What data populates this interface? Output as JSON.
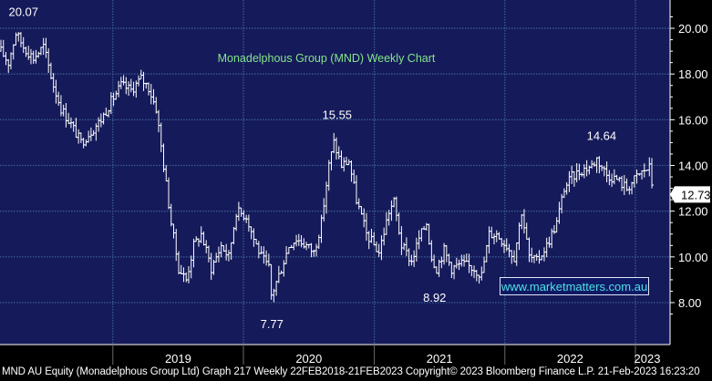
{
  "chart_data": {
    "type": "bar",
    "subtype": "ohlc-weekly",
    "title": "Monadelphous Group (MND) Weekly Chart",
    "xlabel": "",
    "ylabel": "",
    "ylim": [
      7.0,
      21.0
    ],
    "y_ticks": [
      8.0,
      10.0,
      12.0,
      14.0,
      16.0,
      18.0,
      20.0
    ],
    "y_tick_labels": [
      "8.00",
      "10.00",
      "12.00",
      "14.00",
      "16.00",
      "18.00",
      "20.00"
    ],
    "x_range": [
      "2018-02-22",
      "2023-02-21"
    ],
    "x_labels": [
      {
        "label": "2019",
        "date": "2019-01-01"
      },
      {
        "label": "2020",
        "date": "2020-01-01"
      },
      {
        "label": "2021",
        "date": "2021-01-01"
      },
      {
        "label": "2022",
        "date": "2022-01-01"
      },
      {
        "label": "2023",
        "date": "2023-01-01"
      }
    ],
    "grid": true,
    "last_price": {
      "label": "12.73",
      "value": 12.73
    },
    "annotations": [
      {
        "text": "20.07",
        "date": "2018-04-05",
        "value": 20.07
      },
      {
        "text": "15.55",
        "date": "2020-09-03",
        "value": 15.55
      },
      {
        "text": "7.77",
        "date": "2020-03-19",
        "value": 7.77
      },
      {
        "text": "8.92",
        "date": "2021-06-17",
        "value": 8.92
      },
      {
        "text": "14.64",
        "date": "2022-09-15",
        "value": 14.64
      }
    ],
    "price_path": [
      [
        "2018-02-22",
        19.0
      ],
      [
        "2018-03-15",
        18.5
      ],
      [
        "2018-04-05",
        19.8
      ],
      [
        "2018-04-26",
        19.2
      ],
      [
        "2018-05-24",
        18.7
      ],
      [
        "2018-06-21",
        19.2
      ],
      [
        "2018-07-19",
        17.5
      ],
      [
        "2018-08-09",
        16.5
      ],
      [
        "2018-09-06",
        15.8
      ],
      [
        "2018-10-04",
        15.0
      ],
      [
        "2018-11-01",
        15.5
      ],
      [
        "2018-11-29",
        16.0
      ],
      [
        "2018-12-27",
        16.8
      ],
      [
        "2019-01-24",
        17.5
      ],
      [
        "2019-02-21",
        17.3
      ],
      [
        "2019-03-21",
        17.8
      ],
      [
        "2019-04-11",
        17.4
      ],
      [
        "2019-05-02",
        16.5
      ],
      [
        "2019-05-23",
        14.0
      ],
      [
        "2019-06-13",
        11.5
      ],
      [
        "2019-07-04",
        9.5
      ],
      [
        "2019-07-25",
        9.0
      ],
      [
        "2019-08-15",
        10.5
      ],
      [
        "2019-09-05",
        11.0
      ],
      [
        "2019-10-03",
        9.5
      ],
      [
        "2019-10-31",
        10.5
      ],
      [
        "2019-11-21",
        10.0
      ],
      [
        "2019-12-12",
        12.0
      ],
      [
        "2020-01-09",
        11.8
      ],
      [
        "2020-01-30",
        10.8
      ],
      [
        "2020-02-20",
        10.0
      ],
      [
        "2020-03-12",
        9.5
      ],
      [
        "2020-03-19",
        8.3
      ],
      [
        "2020-04-16",
        9.5
      ],
      [
        "2020-05-07",
        10.5
      ],
      [
        "2020-05-28",
        10.8
      ],
      [
        "2020-06-25",
        10.5
      ],
      [
        "2020-07-16",
        10.2
      ],
      [
        "2020-08-06",
        11.5
      ],
      [
        "2020-08-27",
        14.0
      ],
      [
        "2020-09-10",
        15.0
      ],
      [
        "2020-10-01",
        14.0
      ],
      [
        "2020-10-22",
        14.2
      ],
      [
        "2020-11-12",
        12.5
      ],
      [
        "2020-12-10",
        11.0
      ],
      [
        "2021-01-14",
        10.2
      ],
      [
        "2021-02-11",
        12.0
      ],
      [
        "2021-02-25",
        12.4
      ],
      [
        "2021-03-18",
        10.5
      ],
      [
        "2021-04-15",
        9.8
      ],
      [
        "2021-05-06",
        10.8
      ],
      [
        "2021-05-27",
        11.5
      ],
      [
        "2021-06-10",
        10.0
      ],
      [
        "2021-06-24",
        9.5
      ],
      [
        "2021-07-15",
        10.3
      ],
      [
        "2021-08-05",
        9.5
      ],
      [
        "2021-09-02",
        9.7
      ],
      [
        "2021-10-07",
        9.5
      ],
      [
        "2021-10-28",
        9.2
      ],
      [
        "2021-11-18",
        11.0
      ],
      [
        "2021-12-09",
        11.0
      ],
      [
        "2022-01-06",
        10.5
      ],
      [
        "2022-01-27",
        10.0
      ],
      [
        "2022-02-17",
        12.0
      ],
      [
        "2022-03-10",
        10.0
      ],
      [
        "2022-03-31",
        9.8
      ],
      [
        "2022-04-28",
        10.5
      ],
      [
        "2022-05-26",
        11.5
      ],
      [
        "2022-06-16",
        13.0
      ],
      [
        "2022-07-07",
        13.5
      ],
      [
        "2022-08-04",
        13.8
      ],
      [
        "2022-09-01",
        14.0
      ],
      [
        "2022-09-15",
        14.3
      ],
      [
        "2022-10-13",
        13.6
      ],
      [
        "2022-11-10",
        13.4
      ],
      [
        "2022-12-08",
        13.0
      ],
      [
        "2023-01-05",
        13.5
      ],
      [
        "2023-01-26",
        13.8
      ],
      [
        "2023-02-09",
        13.9
      ],
      [
        "2023-02-21",
        12.73
      ]
    ]
  },
  "footer": {
    "text": "MND AU Equity (Monadelphous Group Ltd) Graph 217  Weekly 22FEB2018-21FEB2023  Copyright© 2023 Bloomberg Finance L.P.   21-Feb-2023 16:23:20"
  },
  "watermark": {
    "text": "www.marketmatters.com.au"
  },
  "colors": {
    "background": "#151a5a",
    "grid": "#3a5d90",
    "bars": "#ffffff",
    "title": "#84e58a",
    "watermark_text": "#4fe0e6"
  }
}
